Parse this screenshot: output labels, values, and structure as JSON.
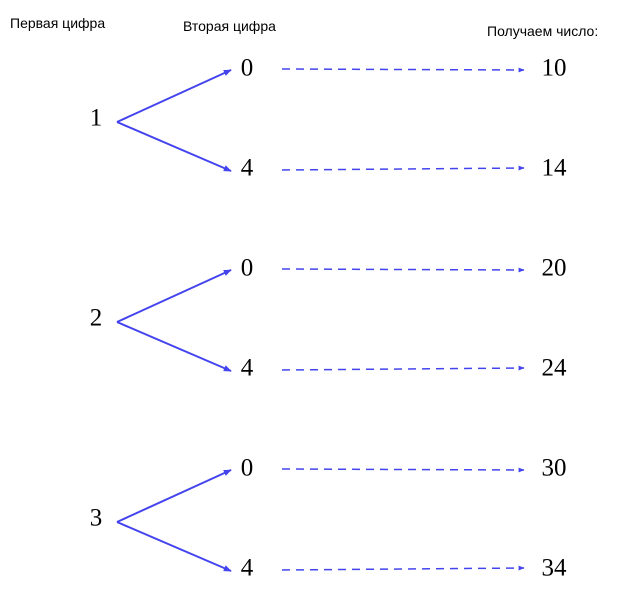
{
  "headers": [
    "Первая цифра",
    "Вторая цифра",
    "Получаем число:"
  ],
  "groups": [
    {
      "first": "1",
      "branches": [
        {
          "second": "0",
          "result": "10"
        },
        {
          "second": "4",
          "result": "14"
        }
      ]
    },
    {
      "first": "2",
      "branches": [
        {
          "second": "0",
          "result": "20"
        },
        {
          "second": "4",
          "result": "24"
        }
      ]
    },
    {
      "first": "3",
      "branches": [
        {
          "second": "0",
          "result": "30"
        },
        {
          "second": "4",
          "result": "34"
        }
      ]
    }
  ]
}
